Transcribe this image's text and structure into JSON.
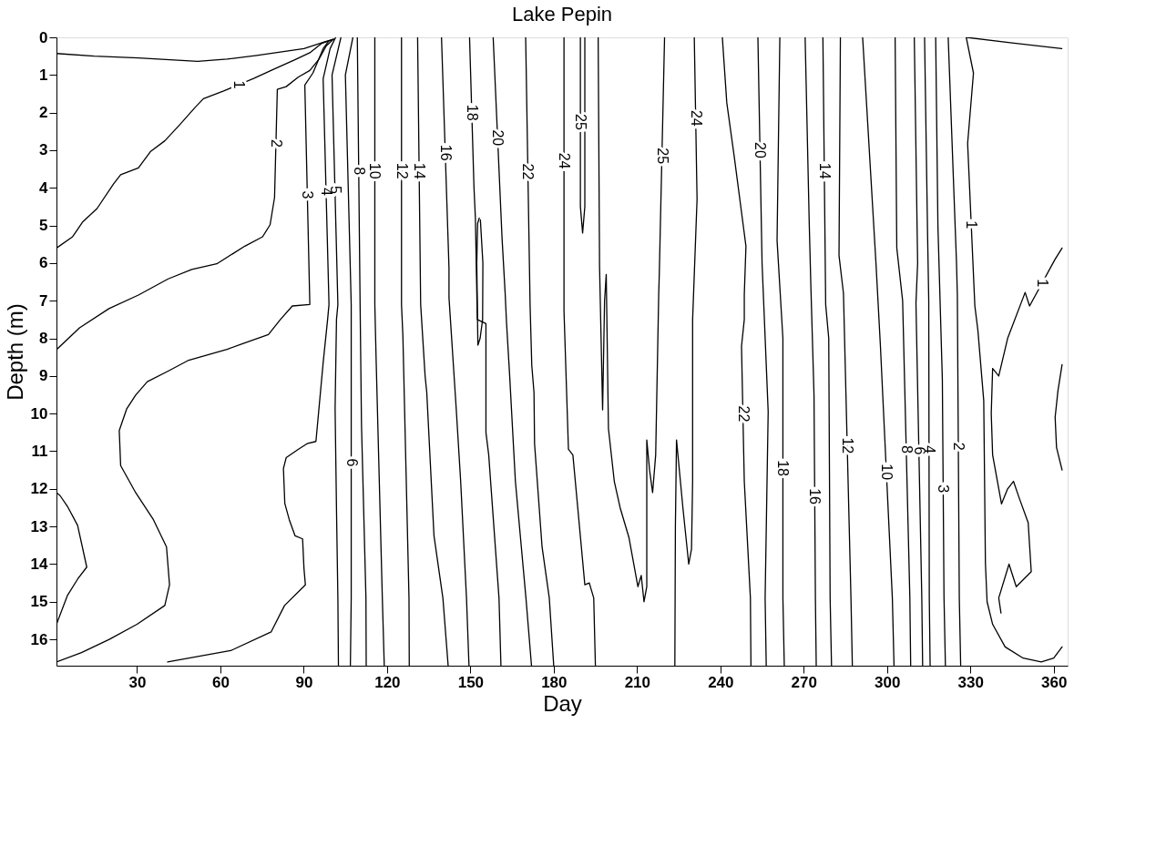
{
  "chart_data": {
    "type": "line",
    "title": "Lake Pepin",
    "xlabel": "Day",
    "ylabel": "Depth (m)",
    "xlim": [
      1,
      365
    ],
    "xticks": [
      30,
      60,
      90,
      120,
      150,
      180,
      210,
      240,
      270,
      300,
      330,
      360
    ],
    "ylim": [
      16.7,
      0
    ],
    "yticks": [
      0,
      1,
      2,
      3,
      4,
      5,
      6,
      7,
      8,
      9,
      10,
      11,
      12,
      13,
      14,
      15,
      16
    ],
    "series": [
      {
        "color": "#000000",
        "x": [
          1,
          14.6,
          30.5,
          51.8,
          62.4,
          73.1,
          90.1,
          97.6,
          100.7
        ],
        "values": [
          0.43,
          0.5,
          0.55,
          0.64,
          0.58,
          0.48,
          0.3,
          0.12,
          0.05
        ]
      },
      {
        "name": "1",
        "color": "#000000",
        "x": [
          1,
          6.8,
          10.5,
          15.6,
          21.5,
          24.1,
          30.5,
          34.8,
          40,
          45.4,
          50.7,
          53.9,
          61.4,
          72,
          79.5,
          87,
          92.2,
          96.5,
          100.7
        ],
        "values": [
          5.6,
          5.3,
          4.9,
          4.55,
          3.9,
          3.65,
          3.47,
          3.04,
          2.75,
          2.32,
          1.88,
          1.63,
          1.42,
          1.09,
          0.84,
          0.59,
          0.41,
          0.16,
          0.05
        ]
      },
      {
        "name": "2",
        "color": "#000000",
        "x": [
          1,
          9.3,
          19.9,
          30.5,
          41.2,
          49.7,
          58.7,
          68.8,
          75.2,
          77.9,
          79.5,
          80.5,
          83.7,
          88,
          92.2,
          95.4,
          98.1,
          100.7
        ],
        "values": [
          8.3,
          7.72,
          7.21,
          6.85,
          6.42,
          6.17,
          6.02,
          5.55,
          5.3,
          4.98,
          4.26,
          1.38,
          1.31,
          1.06,
          0.88,
          0.59,
          0.23,
          0.05
        ]
      },
      {
        "name": "3",
        "color": "#000000",
        "x": [
          99.1,
          97,
          93.3,
          90.4,
          92.2,
          85.9,
          81.6,
          77.3,
          67.8,
          62.4,
          48.6,
          41.2,
          33.7,
          29.5,
          26.3,
          23.6,
          24.1,
          29.5,
          35.9,
          40.6,
          41.7,
          40,
          30,
          20,
          10,
          1
        ],
        "values": [
          0.09,
          0.3,
          0.95,
          1.27,
          7.1,
          7.14,
          7.5,
          7.9,
          8.15,
          8.29,
          8.58,
          8.87,
          9.15,
          9.51,
          9.87,
          10.45,
          11.38,
          12.1,
          12.82,
          13.54,
          14.55,
          15.1,
          15.6,
          16.0,
          16.35,
          16.6
        ]
      },
      {
        "color": "#000000",
        "x": [
          1,
          2.3,
          4.9,
          8.6,
          11.9,
          8.6,
          4.9,
          1
        ],
        "values": [
          12.1,
          12.18,
          12.46,
          12.97,
          14.08,
          14.4,
          14.84,
          15.6
        ]
      },
      {
        "name": "4",
        "color": "#000000",
        "x": [
          101.5,
          99.5,
          97,
          99.1,
          98.6,
          97,
          94.4,
          91.2,
          88,
          83.7,
          82.7,
          83.2,
          84.8,
          86.9,
          89.6,
          90.1,
          90.6,
          83.1,
          78.3,
          63.7,
          41
        ],
        "values": [
          0,
          0.3,
          1.1,
          7.1,
          7.5,
          8.65,
          10.74,
          10.8,
          10.95,
          11.17,
          11.46,
          12.39,
          12.82,
          13.25,
          13.33,
          14.12,
          14.55,
          15.1,
          15.8,
          16.3,
          16.6
        ]
      },
      {
        "name": "5",
        "color": "#000000",
        "x": [
          103.4,
          100.2,
          102.3,
          101.8,
          101.3,
          101.8,
          102.3,
          102.5
        ],
        "values": [
          0,
          1.0,
          7.1,
          7.5,
          9.87,
          12.54,
          14.9,
          16.7
        ]
      },
      {
        "name": "6",
        "color": "#000000",
        "x": [
          107.7,
          105,
          107.1,
          107.1,
          107.1,
          106.8
        ],
        "values": [
          0,
          1.0,
          7.1,
          7.7,
          14.9,
          16.7
        ]
      },
      {
        "name": "8",
        "color": "#000000",
        "x": [
          109.3,
          110.3,
          110.8,
          112.4,
          112.5
        ],
        "values": [
          0,
          7.1,
          10.3,
          14.9,
          16.7
        ]
      },
      {
        "name": "10",
        "color": "#000000",
        "x": [
          115.6,
          115.6,
          116.1,
          118.3,
          119
        ],
        "values": [
          0,
          7.1,
          8.65,
          14.9,
          16.7
        ]
      },
      {
        "name": "12",
        "color": "#000000",
        "x": [
          125.2,
          125.2,
          125.7,
          127.9,
          128
        ],
        "values": [
          0,
          7.1,
          7.93,
          14.9,
          16.7
        ]
      },
      {
        "name": "14",
        "color": "#000000",
        "x": [
          131,
          132.1,
          133.7,
          134.3,
          136.9,
          140.1,
          142
        ],
        "values": [
          0,
          7.1,
          9.0,
          9.44,
          13.25,
          14.9,
          16.7
        ]
      },
      {
        "name": "16",
        "color": "#000000",
        "x": [
          139.6,
          142.3,
          142.3,
          142.3,
          144.9,
          146.5,
          148.6,
          149.5
        ],
        "values": [
          0,
          6.13,
          6.6,
          6.92,
          9.87,
          11.8,
          14.9,
          16.7
        ]
      },
      {
        "color": "#000000",
        "x": [
          153.6,
          154.5,
          154.4,
          153.5,
          152.7,
          152.3,
          152.6,
          153.2
        ],
        "values": [
          4.85,
          6,
          7.5,
          8.0,
          8.18,
          6,
          4.95,
          4.8
        ]
      },
      {
        "name": "18",
        "color": "#000000",
        "x": [
          149.7,
          151.3,
          151.8,
          152.5,
          155.6,
          155.6,
          156.6,
          160.3,
          161
        ],
        "values": [
          0,
          4.0,
          4.8,
          7.5,
          7.61,
          10.5,
          11.1,
          14.9,
          16.7
        ]
      },
      {
        "name": "20",
        "color": "#000000",
        "x": [
          158.2,
          161.4,
          162.5,
          163,
          164.1,
          166.2,
          170,
          172
        ],
        "values": [
          0,
          5.34,
          6.78,
          7.57,
          8.94,
          11.8,
          14.9,
          16.7
        ]
      },
      {
        "name": "22",
        "color": "#000000",
        "x": [
          169.9,
          171.5,
          172.1,
          172.9,
          173.1,
          175.8,
          178.4,
          180
        ],
        "values": [
          0,
          7.14,
          8.72,
          9.44,
          10.8,
          13.54,
          14.9,
          16.7
        ]
      },
      {
        "name": "24",
        "color": "#000000",
        "x": [
          183.7,
          183.7,
          183.7,
          185.3,
          186.9,
          191.2,
          192.8,
          194.4,
          195
        ],
        "values": [
          0,
          6.56,
          7.28,
          10.95,
          11.1,
          14.55,
          14.5,
          14.9,
          16.7
        ]
      },
      {
        "name": "25",
        "color": "#000000",
        "x": [
          189.6,
          189.6,
          190.4,
          191.2,
          191.2
        ],
        "values": [
          0,
          4.5,
          5.2,
          4.5,
          0
        ]
      },
      {
        "name": "25",
        "color": "#000000",
        "x": [
          196,
          196.5,
          197.6,
          198.3,
          198.9,
          199.7,
          201.8,
          203.9,
          207.1,
          210.3,
          211.5,
          212.5,
          213.5,
          213.5,
          214.5,
          215.6,
          216.7,
          217.8,
          218,
          219.9
        ],
        "values": [
          0,
          6.1,
          9.9,
          7,
          6.3,
          10.4,
          11.8,
          12.5,
          13.3,
          14.6,
          14.3,
          15.0,
          14.6,
          10.7,
          11.5,
          12.1,
          11.1,
          6.8,
          6.3,
          0
        ]
      },
      {
        "name": "24",
        "color": "#000000",
        "x": [
          230.6,
          231.6,
          230,
          230,
          229.6,
          228.6,
          226.5,
          224.2,
          223.8,
          223.6
        ],
        "values": [
          0,
          4.3,
          7.5,
          11.8,
          13.6,
          14.0,
          12.5,
          10.7,
          13,
          16.7
        ]
      },
      {
        "name": "22",
        "color": "#000000",
        "x": [
          240.7,
          242.3,
          245,
          249.2,
          248.6,
          248.6,
          247.6,
          248.6,
          250.8,
          251
        ],
        "values": [
          0,
          1.74,
          3.18,
          5.55,
          6.85,
          7.5,
          8.21,
          11.8,
          14.9,
          16.7
        ]
      },
      {
        "name": "20",
        "color": "#000000",
        "x": [
          253.5,
          255,
          257.2,
          256.1,
          256.5
        ],
        "values": [
          0,
          6,
          9.95,
          14.9,
          16.7
        ]
      },
      {
        "name": "18",
        "color": "#000000",
        "x": [
          261.4,
          260.4,
          262.5,
          262.5,
          263
        ],
        "values": [
          0,
          5.4,
          8,
          14.9,
          16.7
        ]
      },
      {
        "name": "16",
        "color": "#000000",
        "x": [
          270.5,
          272,
          272.6,
          273.7,
          274.2,
          274.5
        ],
        "values": [
          0,
          5,
          6.7,
          9.5,
          14.9,
          16.7
        ]
      },
      {
        "name": "14",
        "color": "#000000",
        "x": [
          276.9,
          277.9,
          279,
          279.5,
          280
        ],
        "values": [
          0,
          7.1,
          8.0,
          14.9,
          16.7
        ]
      },
      {
        "name": "12",
        "color": "#000000",
        "x": [
          283.2,
          282.7,
          284.3,
          287,
          287.5
        ],
        "values": [
          0,
          5.8,
          6.8,
          14.9,
          16.7
        ]
      },
      {
        "name": "10",
        "color": "#000000",
        "x": [
          291.2,
          296,
          297.6,
          301.9,
          302.5
        ],
        "values": [
          0,
          6,
          8.2,
          14.9,
          16.7
        ]
      },
      {
        "name": "8",
        "color": "#000000",
        "x": [
          302.9,
          303.5,
          305.6,
          308.2,
          308.5
        ],
        "values": [
          0,
          5.6,
          7,
          14.9,
          16.7
        ]
      },
      {
        "name": "6",
        "color": "#000000",
        "x": [
          309.8,
          311,
          310.4,
          312.5,
          312.8
        ],
        "values": [
          0,
          6,
          7.07,
          14.9,
          16.7
        ]
      },
      {
        "name": "4",
        "color": "#000000",
        "x": [
          313.5,
          314.6,
          315,
          315.2,
          315.5
        ],
        "values": [
          0,
          5.3,
          7,
          14.9,
          16.7
        ]
      },
      {
        "name": "3",
        "color": "#000000",
        "x": [
          317.5,
          318.3,
          319.9,
          320.5,
          321
        ],
        "values": [
          0,
          5,
          9.1,
          14.9,
          16.7
        ]
      },
      {
        "name": "2",
        "color": "#000000",
        "x": [
          322,
          325,
          325.3,
          326,
          326.5
        ],
        "values": [
          0,
          6,
          6.85,
          14.9,
          16.7
        ]
      },
      {
        "color": "#000000",
        "x": [
          328.5,
          345,
          362.9
        ],
        "values": [
          0,
          0.15,
          0.3
        ]
      },
      {
        "name": "1",
        "color": "#000000",
        "x": [
          328.5,
          331.1,
          329,
          331.6,
          332.7,
          334.8,
          335.4,
          336,
          338,
          342.5,
          349,
          355.5,
          360,
          363
        ],
        "values": [
          0,
          0.95,
          2.82,
          7.14,
          7.79,
          9.66,
          13.97,
          15,
          15.6,
          16.2,
          16.5,
          16.6,
          16.5,
          16.2
        ]
      },
      {
        "name": "1",
        "color": "#000000",
        "x": [
          363,
          360.4,
          351.3,
          349.7,
          343.4,
          340.2,
          338,
          337.5,
          338,
          341.2,
          343.4,
          345.5,
          347.6,
          350.8,
          351.3,
          351.9,
          346.5,
          343.9,
          340.2,
          341
        ],
        "values": [
          5.6,
          5.91,
          7.14,
          6.78,
          8.0,
          9.0,
          8.8,
          10.0,
          11.1,
          12.4,
          12.0,
          11.8,
          12.25,
          12.9,
          13.5,
          14.2,
          14.6,
          14.0,
          14.9,
          15.3
        ]
      },
      {
        "color": "#000000",
        "x": [
          363,
          361.5,
          360.5,
          361,
          363
        ],
        "values": [
          8.7,
          9.4,
          10.1,
          10.9,
          11.5
        ]
      }
    ]
  }
}
